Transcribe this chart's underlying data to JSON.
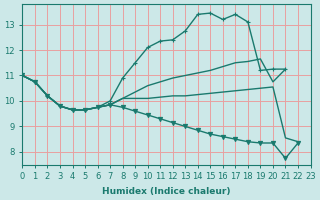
{
  "xlabel": "Humidex (Indice chaleur)",
  "bg_color": "#cce8e8",
  "grid_color": "#e8a0a0",
  "line_color": "#1a7a6e",
  "xlim": [
    0,
    23
  ],
  "ylim": [
    7.5,
    13.8
  ],
  "yticks": [
    8,
    9,
    10,
    11,
    12,
    13
  ],
  "xticks": [
    0,
    1,
    2,
    3,
    4,
    5,
    6,
    7,
    8,
    9,
    10,
    11,
    12,
    13,
    14,
    15,
    16,
    17,
    18,
    19,
    20,
    21,
    22,
    23
  ],
  "lines": [
    {
      "x": [
        0,
        1,
        2,
        3,
        4,
        5,
        6,
        7,
        8,
        9,
        10,
        11,
        12,
        13,
        14,
        15,
        16,
        17,
        18,
        19,
        20,
        21
      ],
      "y": [
        11.0,
        10.75,
        10.2,
        9.8,
        9.65,
        9.65,
        9.75,
        10.0,
        10.9,
        11.5,
        12.1,
        12.35,
        12.4,
        12.75,
        13.4,
        13.45,
        13.2,
        13.4,
        13.1,
        11.2,
        11.25,
        11.25
      ],
      "marker": "+",
      "ms": 3.5
    },
    {
      "x": [
        0,
        1,
        2,
        3,
        4,
        5,
        6,
        7,
        8,
        9,
        10,
        11,
        12,
        13,
        14,
        15,
        16,
        17,
        18,
        19,
        20,
        21
      ],
      "y": [
        11.0,
        10.75,
        10.2,
        9.8,
        9.65,
        9.65,
        9.75,
        9.85,
        10.1,
        10.35,
        10.6,
        10.75,
        10.9,
        11.0,
        11.1,
        11.2,
        11.35,
        11.5,
        11.55,
        11.65,
        10.75,
        11.25
      ],
      "marker": null,
      "ms": 0
    },
    {
      "x": [
        0,
        1,
        2,
        3,
        4,
        5,
        6,
        7,
        8,
        9,
        10,
        11,
        12,
        13,
        14,
        15,
        16,
        17,
        18,
        19,
        20,
        21,
        22
      ],
      "y": [
        11.0,
        10.75,
        10.2,
        9.8,
        9.65,
        9.65,
        9.75,
        9.85,
        10.1,
        10.1,
        10.1,
        10.15,
        10.2,
        10.2,
        10.25,
        10.3,
        10.35,
        10.4,
        10.45,
        10.5,
        10.55,
        8.55,
        8.4
      ],
      "marker": null,
      "ms": 0
    },
    {
      "x": [
        0,
        1,
        2,
        3,
        4,
        5,
        6,
        7,
        8,
        9,
        10,
        11,
        12,
        13,
        14,
        15,
        16,
        17,
        18,
        19,
        20,
        21,
        22
      ],
      "y": [
        11.0,
        10.75,
        10.2,
        9.8,
        9.65,
        9.65,
        9.75,
        9.85,
        9.75,
        9.6,
        9.45,
        9.3,
        9.15,
        9.0,
        8.85,
        8.7,
        8.6,
        8.5,
        8.4,
        8.35,
        8.35,
        7.75,
        8.35
      ],
      "marker": "v",
      "ms": 3.0
    }
  ]
}
